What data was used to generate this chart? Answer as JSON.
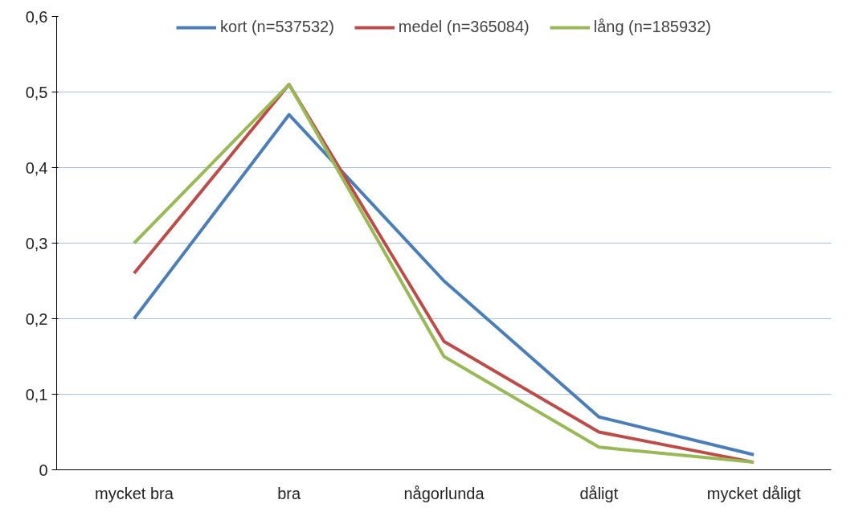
{
  "chart_data": {
    "type": "line",
    "categories": [
      "mycket bra",
      "bra",
      "någorlunda",
      "dåligt",
      "mycket dåligt"
    ],
    "series": [
      {
        "name": "kort (n=537532)",
        "color": "#4a7ebb",
        "values": [
          0.2,
          0.47,
          0.25,
          0.07,
          0.02
        ]
      },
      {
        "name": "medel (n=365084)",
        "color": "#be4b48",
        "values": [
          0.26,
          0.51,
          0.17,
          0.05,
          0.01
        ]
      },
      {
        "name": "lång (n=185932)",
        "color": "#98b954",
        "values": [
          0.3,
          0.51,
          0.15,
          0.03,
          0.01
        ]
      }
    ],
    "ylim": [
      0,
      0.6
    ],
    "yticks": [
      {
        "value": 0,
        "label": "0"
      },
      {
        "value": 0.1,
        "label": "0,1"
      },
      {
        "value": 0.2,
        "label": "0,2"
      },
      {
        "value": 0.3,
        "label": "0,3"
      },
      {
        "value": 0.4,
        "label": "0,4"
      },
      {
        "value": 0.5,
        "label": "0,5"
      },
      {
        "value": 0.6,
        "label": "0,6"
      }
    ],
    "grid": "y",
    "legend": "top",
    "marker": "none",
    "line_style": "solid"
  }
}
